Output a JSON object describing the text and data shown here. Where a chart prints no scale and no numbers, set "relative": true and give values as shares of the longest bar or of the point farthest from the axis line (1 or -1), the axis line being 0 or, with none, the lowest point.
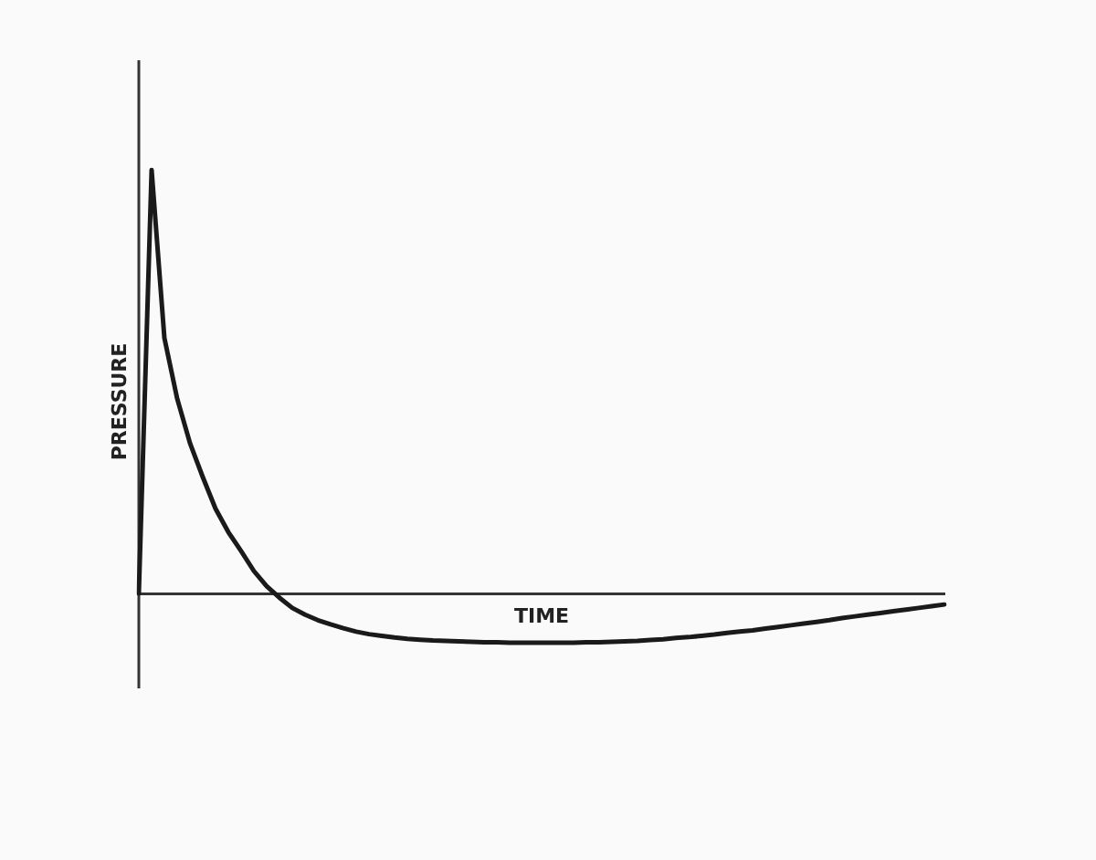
{
  "chart_data": {
    "type": "line",
    "relative": true,
    "xlabel": "TIME",
    "ylabel": "PRESSURE",
    "grid": false,
    "legend": false,
    "marker": "none",
    "line_style": "solid",
    "categories": [
      null,
      null,
      null,
      null,
      null,
      null,
      null,
      null,
      null,
      null,
      null,
      null,
      null,
      null,
      null,
      null,
      null,
      null,
      null,
      null,
      null,
      null,
      null,
      null,
      null,
      null,
      null,
      null,
      null,
      null,
      null,
      null,
      null,
      null,
      null,
      null,
      null,
      null,
      null,
      null,
      null,
      null,
      null,
      null,
      null,
      null,
      null,
      null,
      null,
      null,
      null,
      null,
      null,
      null,
      null,
      null,
      null,
      null,
      null,
      null,
      null,
      null,
      null,
      null
    ],
    "series": [
      {
        "color": "#1a1a1a",
        "values": [
          0,
          1,
          0.603,
          0.46,
          0.355,
          0.275,
          0.2,
          0.145,
          0.1,
          0.053,
          0.017,
          -0.01,
          -0.034,
          -0.05,
          -0.063,
          -0.073,
          -0.082,
          -0.09,
          -0.096,
          -0.1,
          -0.104,
          -0.107,
          -0.109,
          -0.111,
          -0.112,
          -0.113,
          -0.114,
          -0.115,
          -0.115,
          -0.116,
          -0.116,
          -0.116,
          -0.116,
          -0.116,
          -0.116,
          -0.115,
          -0.115,
          -0.114,
          -0.113,
          -0.112,
          -0.11,
          -0.108,
          -0.105,
          -0.103,
          -0.1,
          -0.097,
          -0.093,
          -0.09,
          -0.087,
          -0.083,
          -0.079,
          -0.075,
          -0.071,
          -0.067,
          -0.063,
          -0.058,
          -0.054,
          -0.05,
          -0.046,
          -0.042,
          -0.038,
          -0.034,
          -0.03,
          -0.026
        ]
      }
    ]
  }
}
